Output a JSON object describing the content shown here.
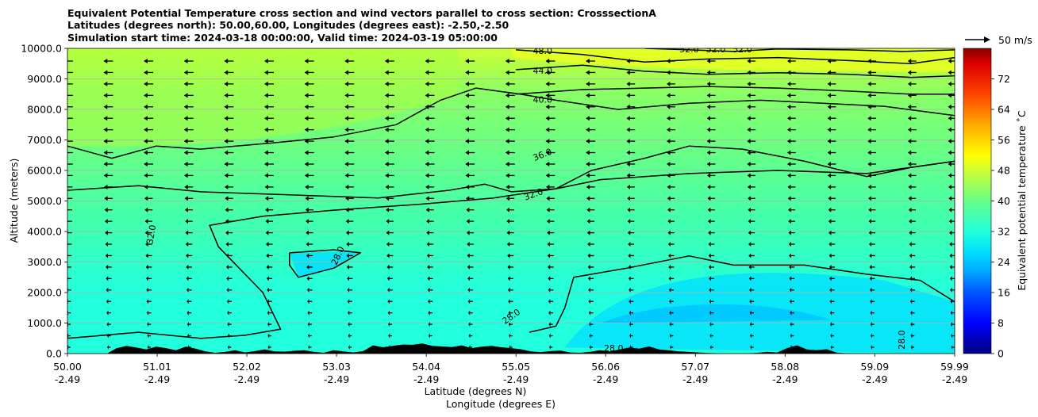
{
  "header": {
    "title_line1": "Equivalent Potential Temperature cross section and wind vectors parallel to cross section: CrosssectionA",
    "title_line2": "Latitudes (degrees north): 50.00,60.00, Longitudes (degrees east): -2.50,-2.50",
    "title_line3": "Simulation start time: 2024-03-18 00:00:00, Valid time: 2024-03-19 05:00:00"
  },
  "quiver_key": {
    "label": "50 m/s"
  },
  "colorbar": {
    "label": "Equivalent potential temperature ˚C",
    "ticks": [
      "0",
      "8",
      "16",
      "24",
      "32",
      "40",
      "48",
      "56",
      "64",
      "72"
    ],
    "range": [
      0,
      80
    ]
  },
  "chart_data": {
    "type": "contour",
    "xlabel_line1": "Latitude (degrees N)",
    "xlabel_line2": "Longitude (degrees E)",
    "ylabel": "Altitude (meters)",
    "ylim": [
      0,
      10000
    ],
    "xlim": [
      50.0,
      59.99
    ],
    "y_ticks": [
      "0.0",
      "1000.0",
      "2000.0",
      "3000.0",
      "4000.0",
      "5000.0",
      "6000.0",
      "7000.0",
      "8000.0",
      "9000.0",
      "10000.0"
    ],
    "x_ticks": [
      {
        "lat": "50.00",
        "lon": "-2.49",
        "value": 50.0
      },
      {
        "lat": "51.01",
        "lon": "-2.49",
        "value": 51.01
      },
      {
        "lat": "52.02",
        "lon": "-2.49",
        "value": 52.02
      },
      {
        "lat": "53.03",
        "lon": "-2.49",
        "value": 53.03
      },
      {
        "lat": "54.04",
        "lon": "-2.49",
        "value": 54.04
      },
      {
        "lat": "55.05",
        "lon": "-2.49",
        "value": 55.05
      },
      {
        "lat": "56.06",
        "lon": "-2.49",
        "value": 56.06
      },
      {
        "lat": "57.07",
        "lon": "-2.49",
        "value": 57.07
      },
      {
        "lat": "58.08",
        "lon": "-2.49",
        "value": 58.08
      },
      {
        "lat": "59.09",
        "lon": "-2.49",
        "value": 59.09
      },
      {
        "lat": "59.99",
        "lon": "-2.49",
        "value": 59.99
      }
    ],
    "grid": "horizontal",
    "contour_lines": [
      {
        "level": "28.0",
        "points": [
          [
            50.0,
            500
          ],
          [
            50.8,
            700
          ],
          [
            51.5,
            500
          ],
          [
            52.0,
            600
          ],
          [
            52.4,
            800
          ],
          [
            52.2,
            2000
          ],
          [
            51.7,
            3500
          ],
          [
            51.6,
            4200
          ],
          [
            52.2,
            4500
          ],
          [
            53.0,
            4700
          ],
          [
            54.0,
            4900
          ],
          [
            54.8,
            5100
          ],
          [
            55.5,
            5400
          ],
          [
            56.0,
            5700
          ],
          [
            57.0,
            5900
          ],
          [
            58.0,
            6000
          ],
          [
            59.0,
            5900
          ],
          [
            59.99,
            6300
          ]
        ]
      },
      {
        "level": "28.0",
        "points": [
          [
            52.5,
            3300
          ],
          [
            53.0,
            3400
          ],
          [
            53.3,
            3300
          ],
          [
            53.0,
            2800
          ],
          [
            52.6,
            2500
          ],
          [
            52.5,
            2900
          ],
          [
            52.5,
            3300
          ]
        ]
      },
      {
        "level": "28.0",
        "points": [
          [
            55.2,
            700
          ],
          [
            55.5,
            900
          ],
          [
            55.6,
            1500
          ],
          [
            55.7,
            2500
          ],
          [
            56.3,
            2800
          ],
          [
            57.0,
            3200
          ],
          [
            57.5,
            2900
          ],
          [
            58.3,
            2900
          ],
          [
            59.0,
            2600
          ],
          [
            59.6,
            2400
          ],
          [
            59.99,
            1700
          ]
        ]
      },
      {
        "level": "32.0",
        "points": [
          [
            50.0,
            5350
          ],
          [
            50.8,
            5500
          ],
          [
            51.5,
            5300
          ],
          [
            52.5,
            5200
          ],
          [
            53.5,
            5100
          ],
          [
            54.3,
            5350
          ],
          [
            54.7,
            5550
          ],
          [
            55.0,
            5300
          ],
          [
            55.5,
            5400
          ],
          [
            55.9,
            6000
          ],
          [
            56.5,
            6400
          ],
          [
            57.0,
            6800
          ],
          [
            57.6,
            6700
          ],
          [
            58.3,
            6300
          ],
          [
            59.0,
            5800
          ],
          [
            59.5,
            6100
          ],
          [
            59.99,
            6300
          ]
        ]
      },
      {
        "level": "36.0",
        "points": [
          [
            50.0,
            6800
          ],
          [
            50.5,
            6400
          ],
          [
            51.0,
            6800
          ],
          [
            51.5,
            6700
          ],
          [
            52.3,
            6900
          ],
          [
            53.0,
            7100
          ],
          [
            53.7,
            7500
          ],
          [
            54.2,
            8300
          ],
          [
            54.6,
            8700
          ],
          [
            55.1,
            8500
          ],
          [
            55.5,
            8300
          ],
          [
            56.2,
            8000
          ],
          [
            57.0,
            8200
          ],
          [
            57.8,
            8300
          ],
          [
            58.5,
            8200
          ],
          [
            59.2,
            8100
          ],
          [
            59.99,
            7800
          ]
        ]
      },
      {
        "level": "40.0",
        "points": [
          [
            55.05,
            8500
          ],
          [
            55.8,
            8650
          ],
          [
            56.5,
            8700
          ],
          [
            57.2,
            8750
          ],
          [
            58.0,
            8700
          ],
          [
            58.8,
            8600
          ],
          [
            59.5,
            8500
          ],
          [
            59.99,
            8500
          ]
        ]
      },
      {
        "level": "44.0",
        "points": [
          [
            55.05,
            9300
          ],
          [
            55.8,
            9450
          ],
          [
            56.5,
            9250
          ],
          [
            57.2,
            9150
          ],
          [
            58.0,
            9200
          ],
          [
            58.8,
            9150
          ],
          [
            59.5,
            9050
          ],
          [
            59.99,
            9100
          ]
        ]
      },
      {
        "level": "48.0",
        "points": [
          [
            55.05,
            9950
          ],
          [
            55.8,
            9800
          ],
          [
            56.5,
            9550
          ],
          [
            57.2,
            9650
          ],
          [
            58.0,
            9700
          ],
          [
            58.8,
            9600
          ],
          [
            59.5,
            9500
          ],
          [
            59.99,
            9700
          ]
        ]
      },
      {
        "level": "52.0",
        "points": [
          [
            56.5,
            10000
          ],
          [
            57.0,
            9950
          ],
          [
            57.5,
            9900
          ],
          [
            58.0,
            9980
          ],
          [
            58.8,
            9950
          ],
          [
            59.4,
            9900
          ],
          [
            59.99,
            9950
          ]
        ]
      }
    ],
    "contour_labels": [
      {
        "text": "48.0",
        "x": 55.35,
        "y": 9900,
        "rot": 0
      },
      {
        "text": "44.0",
        "x": 55.35,
        "y": 9250,
        "rot": 0
      },
      {
        "text": "40.0",
        "x": 55.35,
        "y": 8300,
        "rot": 0
      },
      {
        "text": "36.0",
        "x": 55.35,
        "y": 6500,
        "rot": -22
      },
      {
        "text": "32.0",
        "x": 55.25,
        "y": 5200,
        "rot": -20
      },
      {
        "text": "32.0",
        "x": 50.95,
        "y": 3900,
        "rot": -80
      },
      {
        "text": "28.0",
        "x": 53.05,
        "y": 3200,
        "rot": -65
      },
      {
        "text": "28.0",
        "x": 55.0,
        "y": 1200,
        "rot": -35
      },
      {
        "text": "28.0",
        "x": 56.15,
        "y": 150,
        "rot": 0
      },
      {
        "text": "28.0",
        "x": 59.4,
        "y": 450,
        "rot": -90
      },
      {
        "text": "52.0",
        "x": 57.0,
        "y": 9950,
        "rot": 0
      },
      {
        "text": "52.0",
        "x": 57.3,
        "y": 9950,
        "rot": 0
      },
      {
        "text": "52.0",
        "x": 57.6,
        "y": 9950,
        "rot": 0
      }
    ],
    "terrain_heights_m": [
      0,
      0,
      0,
      0,
      0,
      200,
      280,
      220,
      150,
      250,
      200,
      120,
      250,
      180,
      80,
      30,
      60,
      120,
      40,
      90,
      150,
      80,
      70,
      100,
      120,
      60,
      30,
      120,
      80,
      40,
      90,
      300,
      230,
      280,
      330,
      320,
      370,
      280,
      260,
      240,
      300,
      200,
      250,
      280,
      230,
      200,
      160,
      80,
      50,
      90,
      110,
      40,
      30,
      60,
      120,
      80,
      150,
      220,
      180,
      260,
      150,
      120,
      80,
      60,
      40,
      20,
      0,
      0,
      0,
      0,
      30,
      60,
      40,
      200,
      300,
      150,
      120,
      160,
      40,
      10,
      0,
      0,
      0,
      0,
      0,
      0,
      0,
      0,
      0,
      0,
      0
    ]
  }
}
